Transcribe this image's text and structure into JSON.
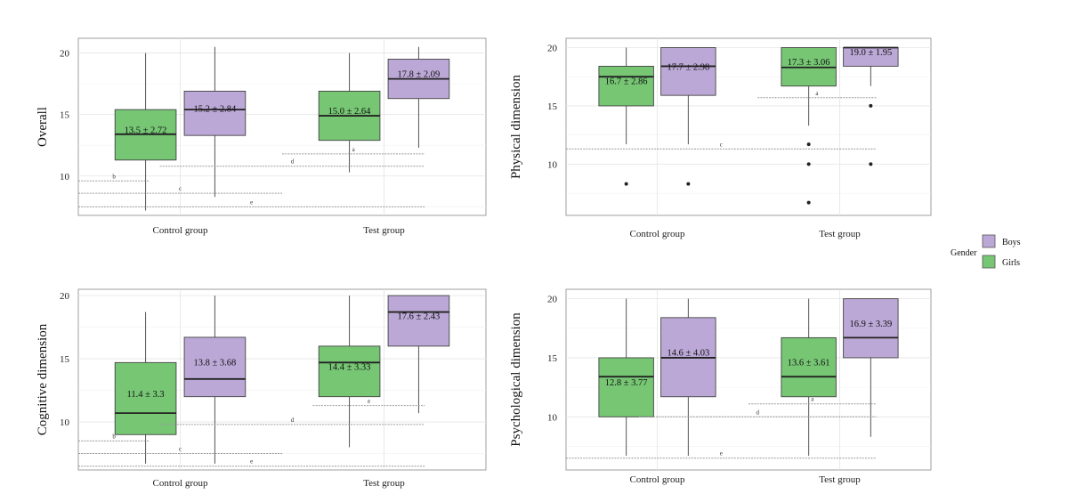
{
  "colors": {
    "girls": "#76c674",
    "boys": "#bca8d6",
    "sig_line": "#9a9a9a"
  },
  "legend": {
    "title": "Gender",
    "items": [
      {
        "key": "boys",
        "label": "Boys",
        "color": "#bca8d6"
      },
      {
        "key": "girls",
        "label": "Girls",
        "color": "#76c674"
      }
    ]
  },
  "chart_data": [
    {
      "type": "box",
      "ylabel": "Overall",
      "categories": [
        "Control group",
        "Test group"
      ],
      "yticks": [
        10,
        15,
        20
      ],
      "ylim": [
        6.8,
        21.2
      ],
      "series": [
        {
          "key": "girls",
          "name": "Girls",
          "boxes": [
            {
              "category": "Control group",
              "min": 7.2,
              "q1": 11.3,
              "median": 13.4,
              "q3": 15.4,
              "max": 20.0,
              "label": "13.5 ± 2.72",
              "outliers": []
            },
            {
              "category": "Test group",
              "min": 10.3,
              "q1": 12.9,
              "median": 14.9,
              "q3": 16.9,
              "max": 20.0,
              "label": "15.0 ± 2.64",
              "outliers": []
            }
          ]
        },
        {
          "key": "boys",
          "name": "Boys",
          "boxes": [
            {
              "category": "Control group",
              "min": 8.3,
              "q1": 13.3,
              "median": 15.4,
              "q3": 16.9,
              "max": 20.5,
              "label": "15.2 ± 2.84",
              "outliers": []
            },
            {
              "category": "Test group",
              "min": 12.3,
              "q1": 16.3,
              "median": 17.9,
              "q3": 19.5,
              "max": 20.5,
              "label": "17.8 ± 2.09",
              "outliers": []
            }
          ]
        }
      ],
      "significance": [
        {
          "label": "a",
          "from": 1.5,
          "to": 2.2,
          "y": 11.8
        },
        {
          "label": "b",
          "from": 0.5,
          "to": 0.85,
          "y": 9.6
        },
        {
          "label": "c",
          "from": 0.5,
          "to": 1.5,
          "y": 8.6
        },
        {
          "label": "d",
          "from": 0.9,
          "to": 2.2,
          "y": 10.8
        },
        {
          "label": "e",
          "from": 0.5,
          "to": 2.2,
          "y": 7.5
        }
      ]
    },
    {
      "type": "box",
      "ylabel": "Physical dimension",
      "categories": [
        "Control group",
        "Test group"
      ],
      "yticks": [
        10,
        15,
        20
      ],
      "ylim": [
        5.6,
        20.8
      ],
      "series": [
        {
          "key": "girls",
          "name": "Girls",
          "boxes": [
            {
              "category": "Control group",
              "min": 11.7,
              "q1": 15.0,
              "median": 17.5,
              "q3": 18.4,
              "max": 20.0,
              "label": "16.7 ± 2.86",
              "outliers": [
                8.3
              ]
            },
            {
              "category": "Test group",
              "min": 13.3,
              "q1": 16.7,
              "median": 18.3,
              "q3": 20.0,
              "max": 20.0,
              "label": "17.3 ± 3.06",
              "outliers": [
                11.7,
                10.0,
                6.7
              ]
            }
          ]
        },
        {
          "key": "boys",
          "name": "Boys",
          "boxes": [
            {
              "category": "Control group",
              "min": 11.7,
              "q1": 15.9,
              "median": 18.4,
              "q3": 20.0,
              "max": 20.0,
              "label": "17.7 ± 2.98",
              "outliers": [
                8.3
              ]
            },
            {
              "category": "Test group",
              "min": 16.7,
              "q1": 18.4,
              "median": 20.0,
              "q3": 20.0,
              "max": 20.0,
              "label": "19.0 ± 1.95",
              "outliers": [
                15.0,
                10.0
              ]
            }
          ]
        }
      ],
      "significance": [
        {
          "label": "a",
          "from": 1.55,
          "to": 2.2,
          "y": 15.7
        },
        {
          "label": "c",
          "from": 0.5,
          "to": 2.2,
          "y": 11.3
        }
      ]
    },
    {
      "type": "box",
      "ylabel": "Cognitive dimension",
      "categories": [
        "Control group",
        "Test group"
      ],
      "yticks": [
        10,
        15,
        20
      ],
      "ylim": [
        6.2,
        20.5
      ],
      "series": [
        {
          "key": "girls",
          "name": "Girls",
          "boxes": [
            {
              "category": "Control group",
              "min": 6.7,
              "q1": 9.0,
              "median": 10.7,
              "q3": 14.7,
              "max": 18.7,
              "label": "11.4 ± 3.3",
              "outliers": []
            },
            {
              "category": "Test group",
              "min": 8.0,
              "q1": 12.0,
              "median": 14.7,
              "q3": 16.0,
              "max": 20.0,
              "label": "14.4 ± 3.33",
              "outliers": []
            }
          ]
        },
        {
          "key": "boys",
          "name": "Boys",
          "boxes": [
            {
              "category": "Control group",
              "min": 6.7,
              "q1": 12.0,
              "median": 13.4,
              "q3": 16.7,
              "max": 20.0,
              "label": "13.8 ± 3.68",
              "outliers": []
            },
            {
              "category": "Test group",
              "min": 10.7,
              "q1": 16.0,
              "median": 18.7,
              "q3": 20.0,
              "max": 20.0,
              "label": "17.6 ± 2.43",
              "outliers": []
            }
          ]
        }
      ],
      "significance": [
        {
          "label": "a",
          "from": 1.65,
          "to": 2.2,
          "y": 11.3
        },
        {
          "label": "b",
          "from": 0.5,
          "to": 0.85,
          "y": 8.5
        },
        {
          "label": "c",
          "from": 0.5,
          "to": 1.5,
          "y": 7.5
        },
        {
          "label": "d",
          "from": 0.9,
          "to": 2.2,
          "y": 9.8
        },
        {
          "label": "e",
          "from": 0.5,
          "to": 2.2,
          "y": 6.5
        }
      ]
    },
    {
      "type": "box",
      "ylabel": "Psychological dimension",
      "categories": [
        "Control group",
        "Test group"
      ],
      "yticks": [
        10,
        15,
        20
      ],
      "ylim": [
        5.5,
        20.8
      ],
      "series": [
        {
          "key": "girls",
          "name": "Girls",
          "boxes": [
            {
              "category": "Control group",
              "min": 6.7,
              "q1": 10.0,
              "median": 13.4,
              "q3": 15.0,
              "max": 20.0,
              "label": "12.8 ± 3.77",
              "outliers": []
            },
            {
              "category": "Test group",
              "min": 6.7,
              "q1": 11.7,
              "median": 13.4,
              "q3": 16.7,
              "max": 20.0,
              "label": "13.6 ± 3.61",
              "outliers": []
            }
          ]
        },
        {
          "key": "boys",
          "name": "Boys",
          "boxes": [
            {
              "category": "Control group",
              "min": 6.7,
              "q1": 11.7,
              "median": 15.0,
              "q3": 18.4,
              "max": 20.0,
              "label": "14.6 ± 4.03",
              "outliers": []
            },
            {
              "category": "Test group",
              "min": 8.3,
              "q1": 15.0,
              "median": 16.7,
              "q3": 20.0,
              "max": 20.0,
              "label": "16.9 ± 3.39",
              "outliers": []
            }
          ]
        }
      ],
      "significance": [
        {
          "label": "a",
          "from": 1.5,
          "to": 2.2,
          "y": 11.1
        },
        {
          "label": "d",
          "from": 0.9,
          "to": 2.2,
          "y": 10.0
        },
        {
          "label": "e",
          "from": 0.5,
          "to": 2.2,
          "y": 6.5
        }
      ]
    }
  ]
}
